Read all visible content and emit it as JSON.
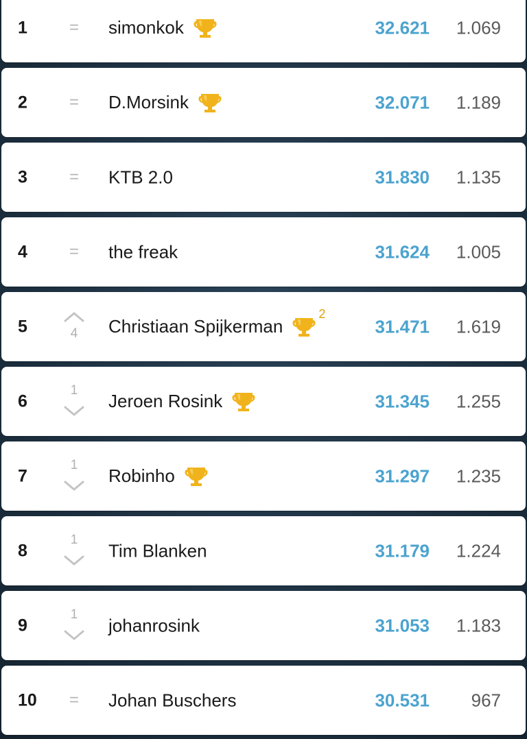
{
  "leaderboard": {
    "rows": [
      {
        "rank": "1",
        "change": "same",
        "change_label": "=",
        "change_amount": "",
        "name": "simonkok",
        "trophy": true,
        "trophy_count": "",
        "score": "32.621",
        "points": "1.069"
      },
      {
        "rank": "2",
        "change": "same",
        "change_label": "=",
        "change_amount": "",
        "name": "D.Morsink",
        "trophy": true,
        "trophy_count": "",
        "score": "32.071",
        "points": "1.189"
      },
      {
        "rank": "3",
        "change": "same",
        "change_label": "=",
        "change_amount": "",
        "name": "KTB 2.0",
        "trophy": false,
        "trophy_count": "",
        "score": "31.830",
        "points": "1.135"
      },
      {
        "rank": "4",
        "change": "same",
        "change_label": "=",
        "change_amount": "",
        "name": "the freak",
        "trophy": false,
        "trophy_count": "",
        "score": "31.624",
        "points": "1.005"
      },
      {
        "rank": "5",
        "change": "up",
        "change_label": "",
        "change_amount": "4",
        "name": "Christiaan Spijkerman",
        "trophy": true,
        "trophy_count": "2",
        "score": "31.471",
        "points": "1.619"
      },
      {
        "rank": "6",
        "change": "down",
        "change_label": "",
        "change_amount": "1",
        "name": "Jeroen Rosink",
        "trophy": true,
        "trophy_count": "",
        "score": "31.345",
        "points": "1.255"
      },
      {
        "rank": "7",
        "change": "down",
        "change_label": "",
        "change_amount": "1",
        "name": "Robinho",
        "trophy": true,
        "trophy_count": "",
        "score": "31.297",
        "points": "1.235"
      },
      {
        "rank": "8",
        "change": "down",
        "change_label": "",
        "change_amount": "1",
        "name": "Tim Blanken",
        "trophy": false,
        "trophy_count": "",
        "score": "31.179",
        "points": "1.224"
      },
      {
        "rank": "9",
        "change": "down",
        "change_label": "",
        "change_amount": "1",
        "name": "johanrosink",
        "trophy": false,
        "trophy_count": "",
        "score": "31.053",
        "points": "1.183"
      },
      {
        "rank": "10",
        "change": "same",
        "change_label": "=",
        "change_amount": "",
        "name": "Johan Buschers",
        "trophy": false,
        "trophy_count": "",
        "score": "30.531",
        "points": "967"
      }
    ]
  },
  "icons": {
    "trophy": "trophy-icon",
    "up": "chevron-up-icon",
    "down": "chevron-down-icon"
  },
  "colors": {
    "score": "#4ba3cf",
    "trophy": "#f1b31c",
    "change": "#b5b5b5"
  }
}
